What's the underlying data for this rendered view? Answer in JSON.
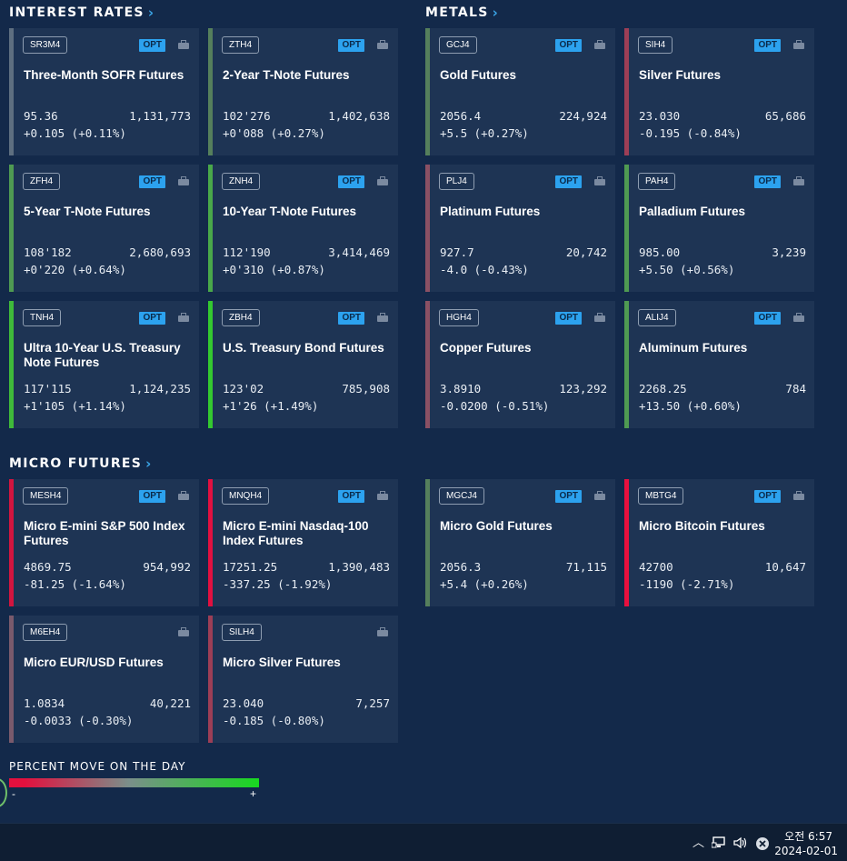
{
  "sections": [
    {
      "title": "INTEREST RATES",
      "x": 10,
      "y": 5
    },
    {
      "title": "METALS",
      "x": 468,
      "y": 5
    },
    {
      "title": "MICRO FUTURES",
      "x": 10,
      "y": 501
    }
  ],
  "opt_label": "OPT",
  "cards": [
    {
      "code": "SR3M4",
      "name": "Three-Month SOFR Futures",
      "price": "95.36",
      "volume": "1,131,773",
      "change": "+0.105 (+0.11%)",
      "opt": true,
      "color": "#5e6f80"
    },
    {
      "code": "ZTH4",
      "name": "2-Year T-Note Futures",
      "price": "102'276",
      "volume": "1,402,638",
      "change": "+0'088 (+0.27%)",
      "opt": true,
      "color": "#557f5c"
    },
    {
      "code": "GCJ4",
      "name": "Gold Futures",
      "price": "2056.4",
      "volume": "224,924",
      "change": "+5.5 (+0.27%)",
      "opt": true,
      "color": "#557f5c"
    },
    {
      "code": "SIH4",
      "name": "Silver Futures",
      "price": "23.030",
      "volume": "65,686",
      "change": "-0.195 (-0.84%)",
      "opt": true,
      "color": "#9c3e56"
    },
    {
      "code": "ZFH4",
      "name": "5-Year T-Note Futures",
      "price": "108'182",
      "volume": "2,680,693",
      "change": "+0'220 (+0.64%)",
      "opt": true,
      "color": "#4f9a52"
    },
    {
      "code": "ZNH4",
      "name": "10-Year T-Note Futures",
      "price": "112'190",
      "volume": "3,414,469",
      "change": "+0'310 (+0.87%)",
      "opt": true,
      "color": "#49a84a"
    },
    {
      "code": "PLJ4",
      "name": "Platinum Futures",
      "price": "927.7",
      "volume": "20,742",
      "change": "-4.0 (-0.43%)",
      "opt": true,
      "color": "#8a5064"
    },
    {
      "code": "PAH4",
      "name": "Palladium Futures",
      "price": "985.00",
      "volume": "3,239",
      "change": "+5.50 (+0.56%)",
      "opt": true,
      "color": "#4f9a52"
    },
    {
      "code": "TNH4",
      "name": "Ultra 10-Year U.S. Treasury Note Futures",
      "price": "117'115",
      "volume": "1,124,235",
      "change": "+1'105 (+1.14%)",
      "opt": true,
      "color": "#3fba3a"
    },
    {
      "code": "ZBH4",
      "name": "U.S. Treasury Bond Futures",
      "price": "123'02",
      "volume": "785,908",
      "change": "+1'26 (+1.49%)",
      "opt": true,
      "color": "#34c830"
    },
    {
      "code": "HGH4",
      "name": "Copper Futures",
      "price": "3.8910",
      "volume": "123,292",
      "change": "-0.0200 (-0.51%)",
      "opt": true,
      "color": "#8a5064"
    },
    {
      "code": "ALIJ4",
      "name": "Aluminum Futures",
      "price": "2268.25",
      "volume": "784",
      "change": "+13.50 (+0.60%)",
      "opt": true,
      "color": "#4f9a52"
    },
    {
      "code": "MESH4",
      "name": "Micro E-mini S&P 500 Index Futures",
      "price": "4869.75",
      "volume": "954,992",
      "change": "-81.25 (-1.64%)",
      "opt": true,
      "color": "#d2153f"
    },
    {
      "code": "MNQH4",
      "name": "Micro E-mini Nasdaq-100 Index Futures",
      "price": "17251.25",
      "volume": "1,390,483",
      "change": "-337.25 (-1.92%)",
      "opt": true,
      "color": "#e01040"
    },
    {
      "code": "MGCJ4",
      "name": "Micro Gold Futures",
      "price": "2056.3",
      "volume": "71,115",
      "change": "+5.4 (+0.26%)",
      "opt": true,
      "color": "#557f5c"
    },
    {
      "code": "MBTG4",
      "name": "Micro Bitcoin Futures",
      "price": "42700",
      "volume": "10,647",
      "change": "-1190 (-2.71%)",
      "opt": true,
      "color": "#e8103e"
    },
    {
      "code": "M6EH4",
      "name": "Micro EUR/USD Futures",
      "price": "1.0834",
      "volume": "40,221",
      "change": "-0.0033 (-0.30%)",
      "opt": false,
      "color": "#7a5a6c"
    },
    {
      "code": "SILH4",
      "name": "Micro Silver Futures",
      "price": "23.040",
      "volume": "7,257",
      "change": "-0.185 (-0.80%)",
      "opt": false,
      "color": "#9c3e56"
    }
  ],
  "legend": {
    "title": "PERCENT MOVE ON THE DAY",
    "minus": "-",
    "plus": "+"
  },
  "taskbar": {
    "time": "오전 6:57",
    "date": "2024-02-01",
    "icons": [
      "chevron-up-icon",
      "network-icon",
      "volume-icon",
      "close-circle-icon"
    ]
  }
}
